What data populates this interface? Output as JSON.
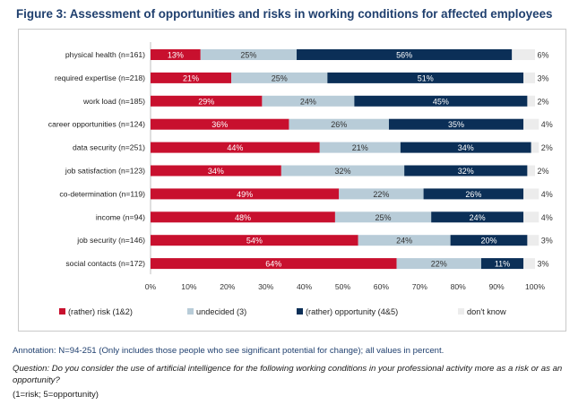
{
  "title": "Figure 3: Assessment of opportunities and risks in working conditions for affected employees",
  "annotation": "Annotation: N=94-251 (Only includes those people who see significant potential for change); all values in percent.",
  "question": "Question: Do you consider the use of artificial intelligence for the following working conditions in your professional activity more as a risk or as an opportunity?",
  "scale": "(1=risk; 5=opportunity)",
  "colors": {
    "risk": "#c8102e",
    "undecided": "#b8ccd8",
    "opportunity": "#0b2f57",
    "dontknow": "#ececec"
  },
  "chart_data": {
    "type": "bar",
    "orientation": "horizontal",
    "stacked": true,
    "categories": [
      "physical health (n=161)",
      "required expertise (n=218)",
      "work load (n=185)",
      "career opportunities (n=124)",
      "data security (n=251)",
      "job satisfaction (n=123)",
      "co-determination (n=119)",
      "income (n=94)",
      "job security (n=146)",
      "social contacts (n=172)"
    ],
    "series": [
      {
        "name": "(rather) risk (1&2)",
        "values": [
          13,
          21,
          29,
          36,
          44,
          34,
          49,
          48,
          54,
          64
        ]
      },
      {
        "name": "undecided (3)",
        "values": [
          25,
          25,
          24,
          26,
          21,
          32,
          22,
          25,
          24,
          22
        ]
      },
      {
        "name": "(rather) opportunity (4&5)",
        "values": [
          56,
          51,
          45,
          35,
          34,
          32,
          26,
          24,
          20,
          11
        ]
      },
      {
        "name": "don't know",
        "values": [
          6,
          3,
          2,
          4,
          2,
          2,
          4,
          4,
          3,
          3
        ]
      }
    ],
    "xlim": [
      0,
      100
    ],
    "xticks": [
      "0%",
      "10%",
      "20%",
      "30%",
      "40%",
      "50%",
      "60%",
      "70%",
      "80%",
      "90%",
      "100%"
    ],
    "grid": false,
    "legend_position": "bottom"
  }
}
